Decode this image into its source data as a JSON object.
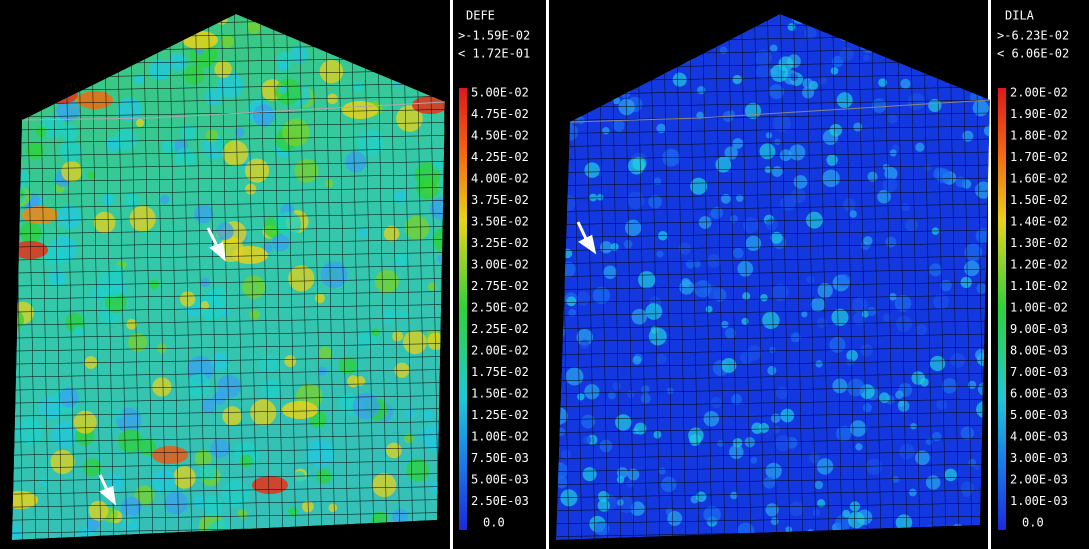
{
  "panels": [
    {
      "legend": {
        "variable": "DEFE",
        "upper": ">-1.59E-02",
        "lower": "< 1.72E-01",
        "levels": [
          "5.00E-02",
          "4.75E-02",
          "4.50E-02",
          "4.25E-02",
          "4.00E-02",
          "3.75E-02",
          "3.50E-02",
          "3.25E-02",
          "3.00E-02",
          "2.75E-02",
          "2.50E-02",
          "2.25E-02",
          "2.00E-02",
          "1.75E-02",
          "1.50E-02",
          "1.25E-02",
          "1.00E-02",
          "7.50E-03",
          "5.00E-03",
          "2.50E-03",
          "0.0"
        ]
      }
    },
    {
      "legend": {
        "variable": "DILA",
        "upper": ">-6.23E-02",
        "lower": "< 6.06E-02",
        "levels": [
          "2.00E-02",
          "1.90E-02",
          "1.80E-02",
          "1.70E-02",
          "1.60E-02",
          "1.50E-02",
          "1.40E-02",
          "1.30E-02",
          "1.20E-02",
          "1.10E-02",
          "1.00E-02",
          "9.00E-03",
          "8.00E-03",
          "7.00E-03",
          "6.00E-03",
          "5.00E-03",
          "4.00E-03",
          "3.00E-03",
          "2.00E-03",
          "1.00E-03",
          "0.0"
        ]
      }
    }
  ]
}
